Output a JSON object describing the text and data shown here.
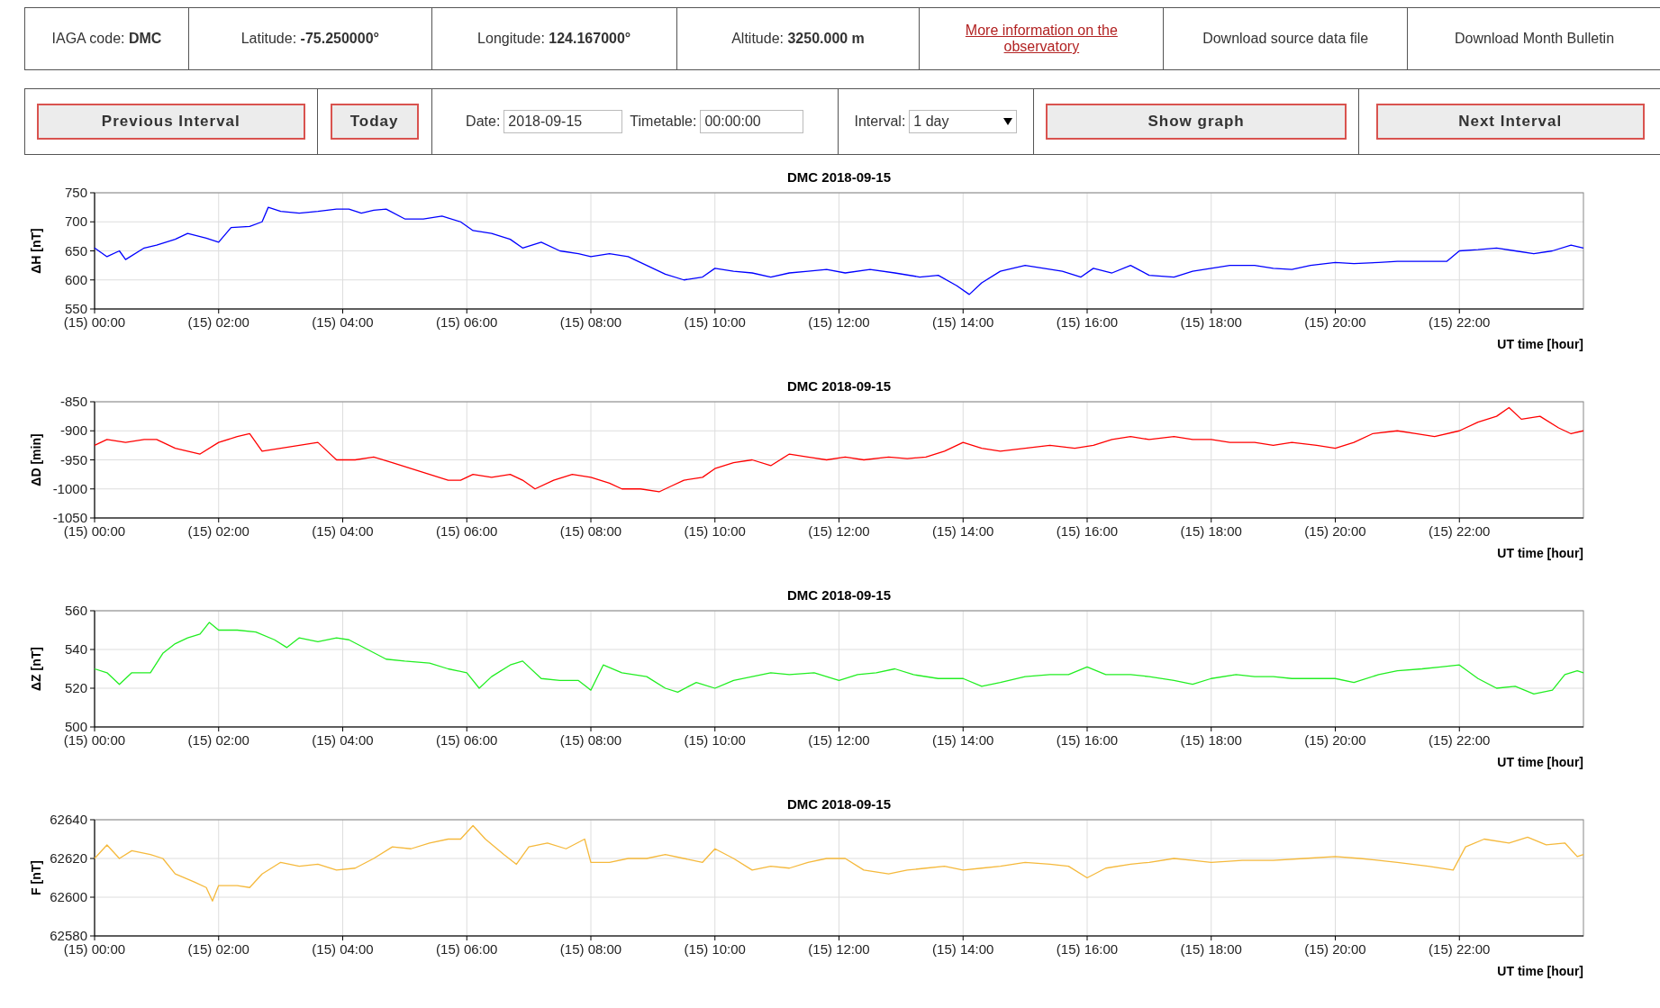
{
  "chart_data": [
    {
      "type": "other",
      "annotations": [
        "IAGA code:",
        "DMC",
        "Latitude:",
        "-75.250000°",
        "Longitude:",
        "124.167000°",
        "Altitude:",
        "3250.000 m",
        "More information on the observatory",
        "Download source data file",
        "Download Month Bulletin",
        "Previous Interval",
        "Today",
        "Date:",
        "2018-09-15",
        "Timetable:",
        "00:00:00",
        "Interval:",
        "1 day",
        "Show graph",
        "Next Interval"
      ]
    },
    {
      "type": "line",
      "title": "DMC 2018-09-15",
      "ylabel": "ΔH [nT]",
      "xlabel": "UT time [hour]",
      "color": "#0000ff",
      "grid": true,
      "xlim": [
        "2018-09-15T00:00",
        "2018-09-16T00:00"
      ],
      "ylim": [
        550,
        750
      ],
      "yticks": [
        550,
        600,
        650,
        700,
        750
      ],
      "xticks": [
        {
          "value": "2018-09-15T00:00",
          "label": "(15) 00:00"
        },
        {
          "value": "2018-09-15T02:00",
          "label": "(15) 02:00"
        },
        {
          "value": "2018-09-15T04:00",
          "label": "(15) 04:00"
        },
        {
          "value": "2018-09-15T06:00",
          "label": "(15) 06:00"
        },
        {
          "value": "2018-09-15T08:00",
          "label": "(15) 08:00"
        },
        {
          "value": "2018-09-15T10:00",
          "label": "(15) 10:00"
        },
        {
          "value": "2018-09-15T12:00",
          "label": "(15) 12:00"
        },
        {
          "value": "2018-09-15T14:00",
          "label": "(15) 14:00"
        },
        {
          "value": "2018-09-15T16:00",
          "label": "(15) 16:00"
        },
        {
          "value": "2018-09-15T18:00",
          "label": "(15) 18:00"
        },
        {
          "value": "2018-09-15T20:00",
          "label": "(15) 20:00"
        },
        {
          "value": "2018-09-15T22:00",
          "label": "(15) 22:00"
        }
      ],
      "x": [
        "2018-09-15T00:00",
        "2018-09-15T00:12",
        "2018-09-15T00:24",
        "2018-09-15T00:30",
        "2018-09-15T00:48",
        "2018-09-15T01:00",
        "2018-09-15T01:18",
        "2018-09-15T01:30",
        "2018-09-15T01:48",
        "2018-09-15T02:00",
        "2018-09-15T02:12",
        "2018-09-15T02:30",
        "2018-09-15T02:42",
        "2018-09-15T02:48",
        "2018-09-15T03:00",
        "2018-09-15T03:18",
        "2018-09-15T03:36",
        "2018-09-15T03:54",
        "2018-09-15T04:06",
        "2018-09-15T04:18",
        "2018-09-15T04:30",
        "2018-09-15T04:42",
        "2018-09-15T05:00",
        "2018-09-15T05:18",
        "2018-09-15T05:36",
        "2018-09-15T05:54",
        "2018-09-15T06:06",
        "2018-09-15T06:24",
        "2018-09-15T06:42",
        "2018-09-15T06:54",
        "2018-09-15T07:12",
        "2018-09-15T07:30",
        "2018-09-15T07:48",
        "2018-09-15T08:00",
        "2018-09-15T08:18",
        "2018-09-15T08:36",
        "2018-09-15T08:54",
        "2018-09-15T09:12",
        "2018-09-15T09:30",
        "2018-09-15T09:48",
        "2018-09-15T10:00",
        "2018-09-15T10:18",
        "2018-09-15T10:36",
        "2018-09-15T10:54",
        "2018-09-15T11:12",
        "2018-09-15T11:30",
        "2018-09-15T11:48",
        "2018-09-15T12:06",
        "2018-09-15T12:30",
        "2018-09-15T12:54",
        "2018-09-15T13:18",
        "2018-09-15T13:36",
        "2018-09-15T13:54",
        "2018-09-15T14:06",
        "2018-09-15T14:18",
        "2018-09-15T14:36",
        "2018-09-15T15:00",
        "2018-09-15T15:18",
        "2018-09-15T15:36",
        "2018-09-15T15:54",
        "2018-09-15T16:06",
        "2018-09-15T16:24",
        "2018-09-15T16:42",
        "2018-09-15T17:00",
        "2018-09-15T17:24",
        "2018-09-15T17:42",
        "2018-09-15T18:00",
        "2018-09-15T18:18",
        "2018-09-15T18:42",
        "2018-09-15T19:00",
        "2018-09-15T19:18",
        "2018-09-15T19:36",
        "2018-09-15T20:00",
        "2018-09-15T20:18",
        "2018-09-15T20:42",
        "2018-09-15T21:00",
        "2018-09-15T21:30",
        "2018-09-15T21:48",
        "2018-09-15T22:00",
        "2018-09-15T22:18",
        "2018-09-15T22:36",
        "2018-09-15T22:54",
        "2018-09-15T23:12",
        "2018-09-15T23:30",
        "2018-09-15T23:48",
        "2018-09-16T00:00"
      ],
      "values": [
        655,
        640,
        650,
        635,
        655,
        660,
        670,
        680,
        672,
        665,
        690,
        692,
        700,
        725,
        718,
        715,
        718,
        722,
        722,
        715,
        720,
        722,
        705,
        705,
        710,
        700,
        685,
        680,
        670,
        655,
        665,
        650,
        645,
        640,
        645,
        640,
        625,
        610,
        600,
        605,
        620,
        615,
        612,
        605,
        612,
        615,
        618,
        612,
        618,
        612,
        605,
        608,
        590,
        575,
        595,
        615,
        625,
        620,
        615,
        605,
        620,
        612,
        625,
        608,
        605,
        615,
        620,
        625,
        625,
        620,
        618,
        625,
        630,
        628,
        630,
        632,
        632,
        632,
        650,
        652,
        655,
        650,
        645,
        650,
        660,
        655
      ]
    },
    {
      "type": "line",
      "title": "DMC 2018-09-15",
      "ylabel": "ΔD [min]",
      "xlabel": "UT time [hour]",
      "color": "#ff0000",
      "grid": true,
      "xlim": [
        "2018-09-15T00:00",
        "2018-09-16T00:00"
      ],
      "ylim": [
        -1050,
        -850
      ],
      "yticks": [
        -1050,
        -1000,
        -950,
        -900,
        -850
      ],
      "xticks": [
        {
          "value": "2018-09-15T00:00",
          "label": "(15) 00:00"
        },
        {
          "value": "2018-09-15T02:00",
          "label": "(15) 02:00"
        },
        {
          "value": "2018-09-15T04:00",
          "label": "(15) 04:00"
        },
        {
          "value": "2018-09-15T06:00",
          "label": "(15) 06:00"
        },
        {
          "value": "2018-09-15T08:00",
          "label": "(15) 08:00"
        },
        {
          "value": "2018-09-15T10:00",
          "label": "(15) 10:00"
        },
        {
          "value": "2018-09-15T12:00",
          "label": "(15) 12:00"
        },
        {
          "value": "2018-09-15T14:00",
          "label": "(15) 14:00"
        },
        {
          "value": "2018-09-15T16:00",
          "label": "(15) 16:00"
        },
        {
          "value": "2018-09-15T18:00",
          "label": "(15) 18:00"
        },
        {
          "value": "2018-09-15T20:00",
          "label": "(15) 20:00"
        },
        {
          "value": "2018-09-15T22:00",
          "label": "(15) 22:00"
        }
      ],
      "x": [
        "2018-09-15T00:00",
        "2018-09-15T00:12",
        "2018-09-15T00:30",
        "2018-09-15T00:48",
        "2018-09-15T01:00",
        "2018-09-15T01:18",
        "2018-09-15T01:30",
        "2018-09-15T01:42",
        "2018-09-15T02:00",
        "2018-09-15T02:18",
        "2018-09-15T02:30",
        "2018-09-15T02:42",
        "2018-09-15T03:00",
        "2018-09-15T03:18",
        "2018-09-15T03:36",
        "2018-09-15T03:42",
        "2018-09-15T03:54",
        "2018-09-15T04:12",
        "2018-09-15T04:30",
        "2018-09-15T04:48",
        "2018-09-15T05:06",
        "2018-09-15T05:24",
        "2018-09-15T05:42",
        "2018-09-15T05:54",
        "2018-09-15T06:06",
        "2018-09-15T06:24",
        "2018-09-15T06:42",
        "2018-09-15T06:54",
        "2018-09-15T07:06",
        "2018-09-15T07:24",
        "2018-09-15T07:42",
        "2018-09-15T08:00",
        "2018-09-15T08:18",
        "2018-09-15T08:30",
        "2018-09-15T08:48",
        "2018-09-15T09:06",
        "2018-09-15T09:18",
        "2018-09-15T09:30",
        "2018-09-15T09:48",
        "2018-09-15T10:00",
        "2018-09-15T10:18",
        "2018-09-15T10:36",
        "2018-09-15T10:54",
        "2018-09-15T11:12",
        "2018-09-15T11:30",
        "2018-09-15T11:48",
        "2018-09-15T12:06",
        "2018-09-15T12:24",
        "2018-09-15T12:48",
        "2018-09-15T13:06",
        "2018-09-15T13:24",
        "2018-09-15T13:42",
        "2018-09-15T14:00",
        "2018-09-15T14:18",
        "2018-09-15T14:36",
        "2018-09-15T15:00",
        "2018-09-15T15:24",
        "2018-09-15T15:48",
        "2018-09-15T16:06",
        "2018-09-15T16:24",
        "2018-09-15T16:42",
        "2018-09-15T17:00",
        "2018-09-15T17:24",
        "2018-09-15T17:42",
        "2018-09-15T18:00",
        "2018-09-15T18:18",
        "2018-09-15T18:42",
        "2018-09-15T19:00",
        "2018-09-15T19:18",
        "2018-09-15T19:42",
        "2018-09-15T20:00",
        "2018-09-15T20:18",
        "2018-09-15T20:36",
        "2018-09-15T21:00",
        "2018-09-15T21:18",
        "2018-09-15T21:36",
        "2018-09-15T22:00",
        "2018-09-15T22:18",
        "2018-09-15T22:36",
        "2018-09-15T22:48",
        "2018-09-15T23:00",
        "2018-09-15T23:18",
        "2018-09-15T23:36",
        "2018-09-15T23:48",
        "2018-09-16T00:00"
      ],
      "values": [
        -925,
        -915,
        -920,
        -915,
        -915,
        -930,
        -935,
        -940,
        -920,
        -910,
        -905,
        -935,
        -930,
        -925,
        -920,
        -930,
        -950,
        -950,
        -945,
        -955,
        -965,
        -975,
        -985,
        -985,
        -975,
        -980,
        -975,
        -985,
        -1000,
        -985,
        -975,
        -980,
        -990,
        -1000,
        -1000,
        -1005,
        -995,
        -985,
        -980,
        -965,
        -955,
        -950,
        -960,
        -940,
        -945,
        -950,
        -945,
        -950,
        -945,
        -948,
        -945,
        -935,
        -920,
        -930,
        -935,
        -930,
        -925,
        -930,
        -925,
        -915,
        -910,
        -915,
        -910,
        -915,
        -915,
        -920,
        -920,
        -925,
        -920,
        -925,
        -930,
        -920,
        -905,
        -900,
        -905,
        -910,
        -900,
        -885,
        -875,
        -860,
        -880,
        -875,
        -895,
        -905,
        -900
      ]
    },
    {
      "type": "line",
      "title": "DMC 2018-09-15",
      "ylabel": "ΔZ [nT]",
      "xlabel": "UT time [hour]",
      "color": "#22ee22",
      "grid": true,
      "xlim": [
        "2018-09-15T00:00",
        "2018-09-16T00:00"
      ],
      "ylim": [
        500,
        560
      ],
      "yticks": [
        500,
        520,
        540,
        560
      ],
      "xticks": [
        {
          "value": "2018-09-15T00:00",
          "label": "(15) 00:00"
        },
        {
          "value": "2018-09-15T02:00",
          "label": "(15) 02:00"
        },
        {
          "value": "2018-09-15T04:00",
          "label": "(15) 04:00"
        },
        {
          "value": "2018-09-15T06:00",
          "label": "(15) 06:00"
        },
        {
          "value": "2018-09-15T08:00",
          "label": "(15) 08:00"
        },
        {
          "value": "2018-09-15T10:00",
          "label": "(15) 10:00"
        },
        {
          "value": "2018-09-15T12:00",
          "label": "(15) 12:00"
        },
        {
          "value": "2018-09-15T14:00",
          "label": "(15) 14:00"
        },
        {
          "value": "2018-09-15T16:00",
          "label": "(15) 16:00"
        },
        {
          "value": "2018-09-15T18:00",
          "label": "(15) 18:00"
        },
        {
          "value": "2018-09-15T20:00",
          "label": "(15) 20:00"
        },
        {
          "value": "2018-09-15T22:00",
          "label": "(15) 22:00"
        }
      ],
      "x": [
        "2018-09-15T00:00",
        "2018-09-15T00:12",
        "2018-09-15T00:24",
        "2018-09-15T00:36",
        "2018-09-15T00:54",
        "2018-09-15T01:06",
        "2018-09-15T01:18",
        "2018-09-15T01:30",
        "2018-09-15T01:42",
        "2018-09-15T01:51",
        "2018-09-15T02:00",
        "2018-09-15T02:18",
        "2018-09-15T02:36",
        "2018-09-15T02:54",
        "2018-09-15T03:06",
        "2018-09-15T03:18",
        "2018-09-15T03:36",
        "2018-09-15T03:54",
        "2018-09-15T04:06",
        "2018-09-15T04:24",
        "2018-09-15T04:42",
        "2018-09-15T05:00",
        "2018-09-15T05:24",
        "2018-09-15T05:42",
        "2018-09-15T06:00",
        "2018-09-15T06:12",
        "2018-09-15T06:24",
        "2018-09-15T06:42",
        "2018-09-15T06:54",
        "2018-09-15T07:12",
        "2018-09-15T07:30",
        "2018-09-15T07:48",
        "2018-09-15T08:00",
        "2018-09-15T08:12",
        "2018-09-15T08:30",
        "2018-09-15T08:54",
        "2018-09-15T09:12",
        "2018-09-15T09:24",
        "2018-09-15T09:42",
        "2018-09-15T10:00",
        "2018-09-15T10:18",
        "2018-09-15T10:36",
        "2018-09-15T10:54",
        "2018-09-15T11:12",
        "2018-09-15T11:36",
        "2018-09-15T12:00",
        "2018-09-15T12:18",
        "2018-09-15T12:36",
        "2018-09-15T12:54",
        "2018-09-15T13:12",
        "2018-09-15T13:36",
        "2018-09-15T14:00",
        "2018-09-15T14:18",
        "2018-09-15T14:36",
        "2018-09-15T15:00",
        "2018-09-15T15:24",
        "2018-09-15T15:42",
        "2018-09-15T16:00",
        "2018-09-15T16:18",
        "2018-09-15T16:42",
        "2018-09-15T17:00",
        "2018-09-15T17:24",
        "2018-09-15T17:42",
        "2018-09-15T18:00",
        "2018-09-15T18:24",
        "2018-09-15T18:42",
        "2018-09-15T19:00",
        "2018-09-15T19:18",
        "2018-09-15T19:42",
        "2018-09-15T20:00",
        "2018-09-15T20:18",
        "2018-09-15T20:42",
        "2018-09-15T21:00",
        "2018-09-15T21:24",
        "2018-09-15T21:42",
        "2018-09-15T22:00",
        "2018-09-15T22:18",
        "2018-09-15T22:36",
        "2018-09-15T22:54",
        "2018-09-15T23:12",
        "2018-09-15T23:30",
        "2018-09-15T23:42",
        "2018-09-15T23:54",
        "2018-09-16T00:00"
      ],
      "values": [
        530,
        528,
        522,
        528,
        528,
        538,
        543,
        546,
        548,
        554,
        550,
        550,
        549,
        545,
        541,
        546,
        544,
        546,
        545,
        540,
        535,
        534,
        533,
        530,
        528,
        520,
        526,
        532,
        534,
        525,
        524,
        524,
        519,
        532,
        528,
        526,
        520,
        518,
        523,
        520,
        524,
        526,
        528,
        527,
        528,
        524,
        527,
        528,
        530,
        527,
        525,
        525,
        521,
        523,
        526,
        527,
        527,
        531,
        527,
        527,
        526,
        524,
        522,
        525,
        527,
        526,
        526,
        525,
        525,
        525,
        523,
        527,
        529,
        530,
        531,
        532,
        525,
        520,
        521,
        517,
        519,
        527,
        529,
        528
      ]
    },
    {
      "type": "line",
      "title": "DMC 2018-09-15",
      "ylabel": "F [nT]",
      "xlabel": "UT time [hour]",
      "color": "#f5b93c",
      "grid": true,
      "xlim": [
        "2018-09-15T00:00",
        "2018-09-16T00:00"
      ],
      "ylim": [
        62580,
        62640
      ],
      "yticks": [
        62580,
        62600,
        62620,
        62640
      ],
      "xticks": [
        {
          "value": "2018-09-15T00:00",
          "label": "(15) 00:00"
        },
        {
          "value": "2018-09-15T02:00",
          "label": "(15) 02:00"
        },
        {
          "value": "2018-09-15T04:00",
          "label": "(15) 04:00"
        },
        {
          "value": "2018-09-15T06:00",
          "label": "(15) 06:00"
        },
        {
          "value": "2018-09-15T08:00",
          "label": "(15) 08:00"
        },
        {
          "value": "2018-09-15T10:00",
          "label": "(15) 10:00"
        },
        {
          "value": "2018-09-15T12:00",
          "label": "(15) 12:00"
        },
        {
          "value": "2018-09-15T14:00",
          "label": "(15) 14:00"
        },
        {
          "value": "2018-09-15T16:00",
          "label": "(15) 16:00"
        },
        {
          "value": "2018-09-15T18:00",
          "label": "(15) 18:00"
        },
        {
          "value": "2018-09-15T20:00",
          "label": "(15) 20:00"
        },
        {
          "value": "2018-09-15T22:00",
          "label": "(15) 22:00"
        }
      ],
      "x": [
        "2018-09-15T00:00",
        "2018-09-15T00:12",
        "2018-09-15T00:24",
        "2018-09-15T00:36",
        "2018-09-15T00:54",
        "2018-09-15T01:06",
        "2018-09-15T01:18",
        "2018-09-15T01:36",
        "2018-09-15T01:48",
        "2018-09-15T01:54",
        "2018-09-15T02:00",
        "2018-09-15T02:18",
        "2018-09-15T02:30",
        "2018-09-15T02:42",
        "2018-09-15T03:00",
        "2018-09-15T03:18",
        "2018-09-15T03:36",
        "2018-09-15T03:54",
        "2018-09-15T04:12",
        "2018-09-15T04:30",
        "2018-09-15T04:48",
        "2018-09-15T05:06",
        "2018-09-15T05:24",
        "2018-09-15T05:42",
        "2018-09-15T05:54",
        "2018-09-15T06:06",
        "2018-09-15T06:18",
        "2018-09-15T06:36",
        "2018-09-15T06:48",
        "2018-09-15T07:00",
        "2018-09-15T07:18",
        "2018-09-15T07:36",
        "2018-09-15T07:54",
        "2018-09-15T08:00",
        "2018-09-15T08:18",
        "2018-09-15T08:36",
        "2018-09-15T08:54",
        "2018-09-15T09:12",
        "2018-09-15T09:30",
        "2018-09-15T09:48",
        "2018-09-15T10:00",
        "2018-09-15T10:18",
        "2018-09-15T10:36",
        "2018-09-15T10:54",
        "2018-09-15T11:12",
        "2018-09-15T11:30",
        "2018-09-15T11:48",
        "2018-09-15T12:06",
        "2018-09-15T12:24",
        "2018-09-15T12:48",
        "2018-09-15T13:06",
        "2018-09-15T13:24",
        "2018-09-15T13:42",
        "2018-09-15T14:00",
        "2018-09-15T14:18",
        "2018-09-15T14:36",
        "2018-09-15T15:00",
        "2018-09-15T15:24",
        "2018-09-15T15:42",
        "2018-09-15T16:00",
        "2018-09-15T16:18",
        "2018-09-15T16:42",
        "2018-09-15T17:00",
        "2018-09-15T17:24",
        "2018-09-15T17:42",
        "2018-09-15T18:00",
        "2018-09-15T18:30",
        "2018-09-15T19:00",
        "2018-09-15T19:30",
        "2018-09-15T20:00",
        "2018-09-15T20:24",
        "2018-09-15T20:42",
        "2018-09-15T21:00",
        "2018-09-15T21:30",
        "2018-09-15T21:54",
        "2018-09-15T22:06",
        "2018-09-15T22:24",
        "2018-09-15T22:48",
        "2018-09-15T23:06",
        "2018-09-15T23:24",
        "2018-09-15T23:42",
        "2018-09-15T23:54",
        "2018-09-16T00:00"
      ],
      "values": [
        62620,
        62627,
        62620,
        62624,
        62622,
        62620,
        62612,
        62608,
        62605,
        62598,
        62606,
        62606,
        62605,
        62612,
        62618,
        62616,
        62617,
        62614,
        62615,
        62620,
        62626,
        62625,
        62628,
        62630,
        62630,
        62637,
        62630,
        62622,
        62617,
        62626,
        62628,
        62625,
        62630,
        62618,
        62618,
        62620,
        62620,
        62622,
        62620,
        62618,
        62625,
        62620,
        62614,
        62616,
        62615,
        62618,
        62620,
        62620,
        62614,
        62612,
        62614,
        62615,
        62616,
        62614,
        62615,
        62616,
        62618,
        62617,
        62616,
        62610,
        62615,
        62617,
        62618,
        62620,
        62619,
        62618,
        62619,
        62619,
        62620,
        62621,
        62620,
        62619,
        62618,
        62616,
        62614,
        62626,
        62630,
        62628,
        62631,
        62627,
        62628,
        62621,
        62622
      ]
    }
  ]
}
